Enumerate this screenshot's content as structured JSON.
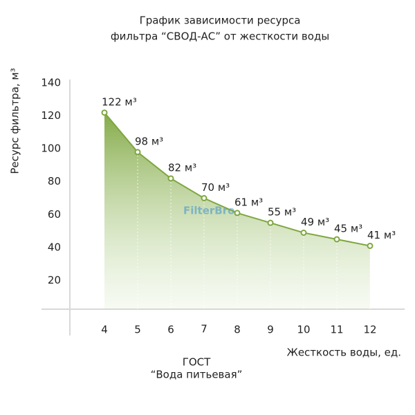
{
  "chart_data": {
    "type": "area",
    "title": [
      "График зависимости ресурса",
      "фильтра “СВОД-АС” от жесткости воды"
    ],
    "y_label": "Ресурс фильтра, м³",
    "x_label": "Жесткость воды, ед.",
    "annotation": [
      "ГОСТ",
      "“Вода питьевая”"
    ],
    "watermark": "FilterBro",
    "x": [
      4,
      5,
      6,
      7,
      8,
      9,
      10,
      11,
      12
    ],
    "values": [
      122,
      98,
      82,
      70,
      61,
      55,
      49,
      45,
      41
    ],
    "value_labels": [
      "122 м³",
      "98 м³",
      "82 м³",
      "70 м³",
      "61 м³",
      "55 м³",
      "49 м³",
      "45 м³",
      "41 м³"
    ],
    "color": "#7ea63f",
    "xlim": [
      3,
      13
    ],
    "xticks": [
      4,
      5,
      6,
      7,
      8,
      9,
      10,
      11,
      12
    ],
    "emphasized_xtick": 7,
    "ylim": [
      0,
      140
    ],
    "yticks": [
      20,
      40,
      60,
      80,
      100,
      120,
      140
    ]
  }
}
